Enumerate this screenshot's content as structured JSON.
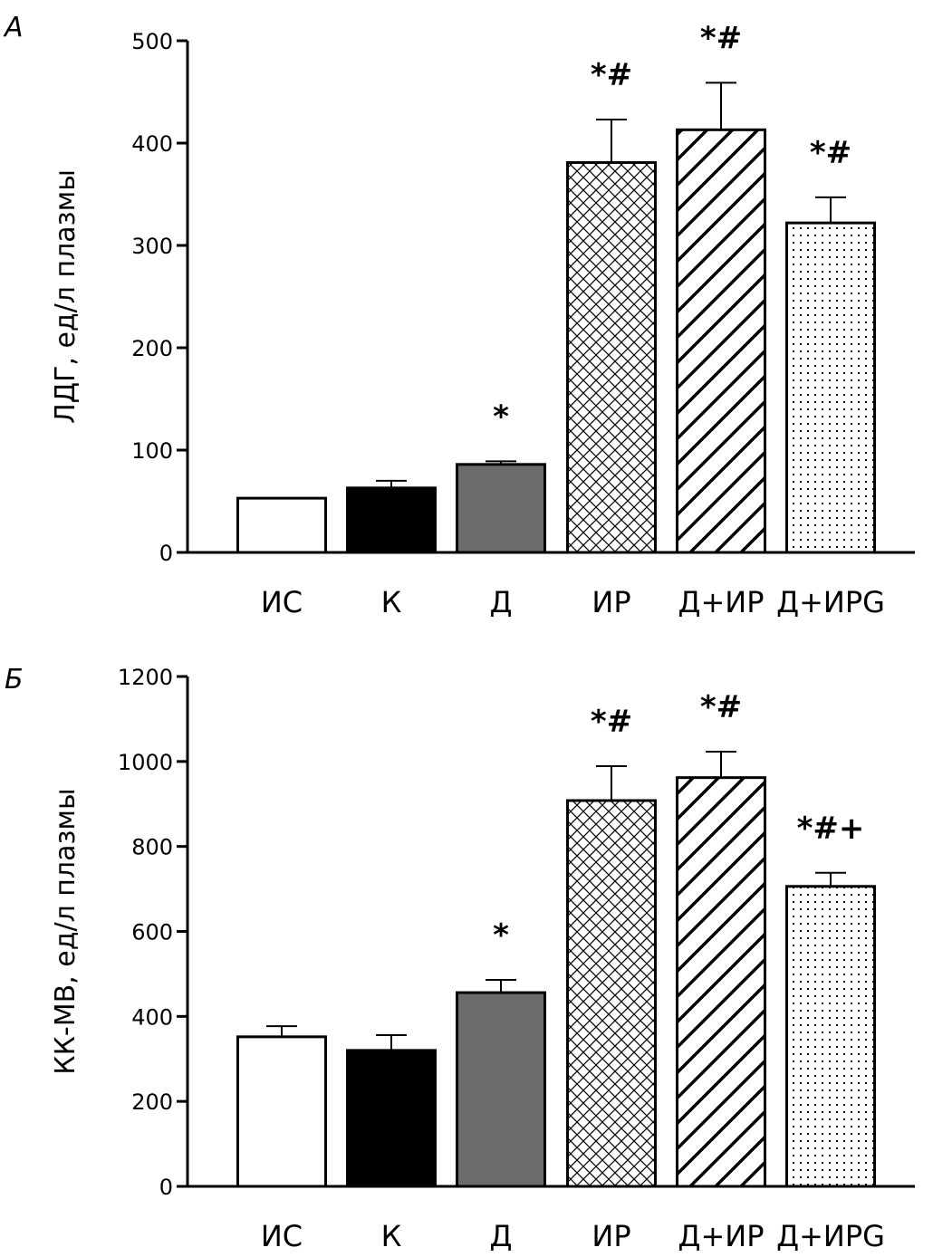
{
  "chart_data": [
    {
      "type": "bar",
      "panel_label": "А",
      "ylabel": "ЛДГ, ед/л плазмы",
      "xlabel": "",
      "categories": [
        "ИС",
        "К",
        "Д",
        "ИР",
        "Д+ИР",
        "Д+ИРG"
      ],
      "values": [
        53,
        63,
        86,
        381,
        413,
        322
      ],
      "errors": [
        0,
        7,
        3,
        42,
        46,
        25
      ],
      "significance": [
        "",
        "",
        "*",
        "*#",
        "*#",
        "*#"
      ],
      "ylim": [
        0,
        500
      ],
      "yticks": [
        0,
        100,
        200,
        300,
        400,
        500
      ],
      "grid": false,
      "fills": [
        "white",
        "black",
        "gray",
        "crosshatch",
        "diagonal-hatch",
        "dots"
      ],
      "colors": {
        "black": "#000000",
        "gray": "#6b6b6b"
      }
    },
    {
      "type": "bar",
      "panel_label": "Б",
      "ylabel": "КК-МВ, ед/л плазмы",
      "xlabel": "",
      "categories": [
        "ИС",
        "К",
        "Д",
        "ИР",
        "Д+ИР",
        "Д+ИРG"
      ],
      "values": [
        352,
        320,
        456,
        908,
        962,
        706
      ],
      "errors": [
        25,
        36,
        30,
        81,
        61,
        32
      ],
      "significance": [
        "",
        "",
        "*",
        "*#",
        "*#",
        "*#+"
      ],
      "ylim": [
        0,
        1200
      ],
      "yticks": [
        0,
        200,
        400,
        600,
        800,
        1000,
        1200
      ],
      "grid": false,
      "fills": [
        "white",
        "black",
        "gray",
        "crosshatch",
        "diagonal-hatch",
        "dots"
      ],
      "colors": {
        "black": "#000000",
        "gray": "#6b6b6b"
      }
    }
  ]
}
